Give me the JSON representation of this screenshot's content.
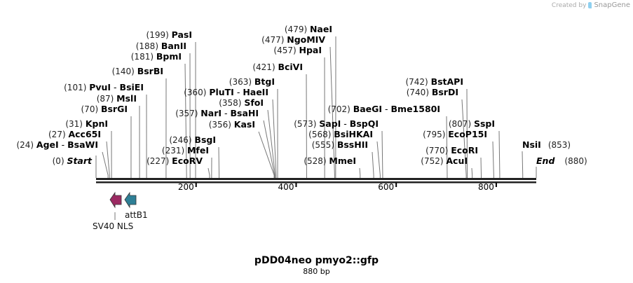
{
  "credit": {
    "prefix": "Created by",
    "brand": "SnapGene"
  },
  "title": "pDD04neo pmyo2::gfp",
  "length_label": "880 bp",
  "sequence_length": 880,
  "colors": {
    "backbone": "#222222",
    "sv40_nls": "#9b2a62",
    "attb1": "#2e7f96",
    "cut_line": "#777777"
  },
  "ends": {
    "start": {
      "label": "Start",
      "pos": 0
    },
    "end": {
      "label": "End",
      "pos": 880
    }
  },
  "ticks": [
    200,
    400,
    600,
    800
  ],
  "sites": [
    {
      "pos": 24,
      "names": [
        "AgeI",
        "BsaWI"
      ]
    },
    {
      "pos": 27,
      "names": [
        "Acc65I"
      ]
    },
    {
      "pos": 31,
      "names": [
        "KpnI"
      ]
    },
    {
      "pos": 70,
      "names": [
        "BsrGI"
      ]
    },
    {
      "pos": 87,
      "names": [
        "MslI"
      ]
    },
    {
      "pos": 101,
      "names": [
        "PvuI",
        "BsiEI"
      ]
    },
    {
      "pos": 140,
      "names": [
        "BsrBI"
      ]
    },
    {
      "pos": 181,
      "names": [
        "BpmI"
      ]
    },
    {
      "pos": 188,
      "names": [
        "BanII"
      ]
    },
    {
      "pos": 199,
      "names": [
        "PasI"
      ]
    },
    {
      "pos": 227,
      "names": [
        "EcoRV"
      ]
    },
    {
      "pos": 231,
      "names": [
        "MfeI"
      ]
    },
    {
      "pos": 246,
      "names": [
        "BsgI"
      ]
    },
    {
      "pos": 356,
      "names": [
        "KasI"
      ]
    },
    {
      "pos": 357,
      "names": [
        "NarI",
        "BsaHI"
      ]
    },
    {
      "pos": 358,
      "names": [
        "SfoI"
      ]
    },
    {
      "pos": 360,
      "names": [
        "PluTI",
        "HaeII"
      ]
    },
    {
      "pos": 363,
      "names": [
        "BtgI"
      ]
    },
    {
      "pos": 421,
      "names": [
        "BciVI"
      ]
    },
    {
      "pos": 457,
      "names": [
        "HpaI"
      ]
    },
    {
      "pos": 477,
      "names": [
        "NgoMIV"
      ]
    },
    {
      "pos": 479,
      "names": [
        "NaeI"
      ]
    },
    {
      "pos": 528,
      "names": [
        "MmeI"
      ]
    },
    {
      "pos": 555,
      "names": [
        "BssHII"
      ]
    },
    {
      "pos": 568,
      "names": [
        "BsiHKAI"
      ]
    },
    {
      "pos": 573,
      "names": [
        "SapI",
        "BspQI"
      ]
    },
    {
      "pos": 702,
      "names": [
        "BaeGI",
        "Bme1580I"
      ]
    },
    {
      "pos": 740,
      "names": [
        "BsrDI"
      ]
    },
    {
      "pos": 742,
      "names": [
        "BstAPI"
      ]
    },
    {
      "pos": 752,
      "names": [
        "AcuI"
      ]
    },
    {
      "pos": 770,
      "names": [
        "EcoRI"
      ]
    },
    {
      "pos": 795,
      "names": [
        "EcoP15I"
      ]
    },
    {
      "pos": 807,
      "names": [
        "SspI"
      ]
    },
    {
      "pos": 853,
      "names": [
        "NsiI"
      ]
    }
  ],
  "features": [
    {
      "name": "SV40 NLS",
      "direction": "reverse",
      "color": "#9b2a62"
    },
    {
      "name": "attB1",
      "direction": "reverse",
      "color": "#2e7f96"
    }
  ]
}
